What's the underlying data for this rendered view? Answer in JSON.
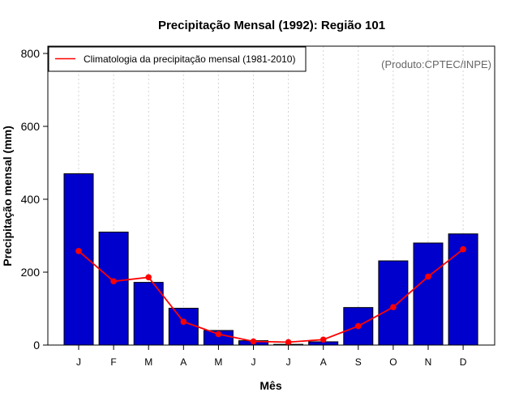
{
  "chart_data": {
    "type": "bar",
    "title": "Precipitação Mensal (1992): Região 101",
    "xlabel": "Mês",
    "ylabel": "Precipitação mensal (mm)",
    "ylim": [
      0,
      820
    ],
    "yticks": [
      0,
      200,
      400,
      600,
      800
    ],
    "grid": "vertical-dashed",
    "categories": [
      "J",
      "F",
      "M",
      "A",
      "M",
      "J",
      "J",
      "A",
      "S",
      "O",
      "N",
      "D"
    ],
    "series": [
      {
        "name": "Precipitação mensal 1992",
        "type": "bar",
        "color": "#0000CD",
        "values": [
          470,
          310,
          172,
          101,
          40,
          12,
          2,
          9,
          103,
          231,
          280,
          305
        ]
      },
      {
        "name": "Climatologia da precipitação mensal (1981-2010)",
        "type": "line",
        "color": "#FF0000",
        "values": [
          258,
          175,
          186,
          64,
          30,
          10,
          8,
          15,
          52,
          104,
          188,
          263
        ]
      }
    ],
    "legend": {
      "position": "top-left",
      "entries": [
        "Climatologia da precipitação mensal (1981-2010)"
      ]
    },
    "annotation": "(Produto:CPTEC/INPE)"
  }
}
